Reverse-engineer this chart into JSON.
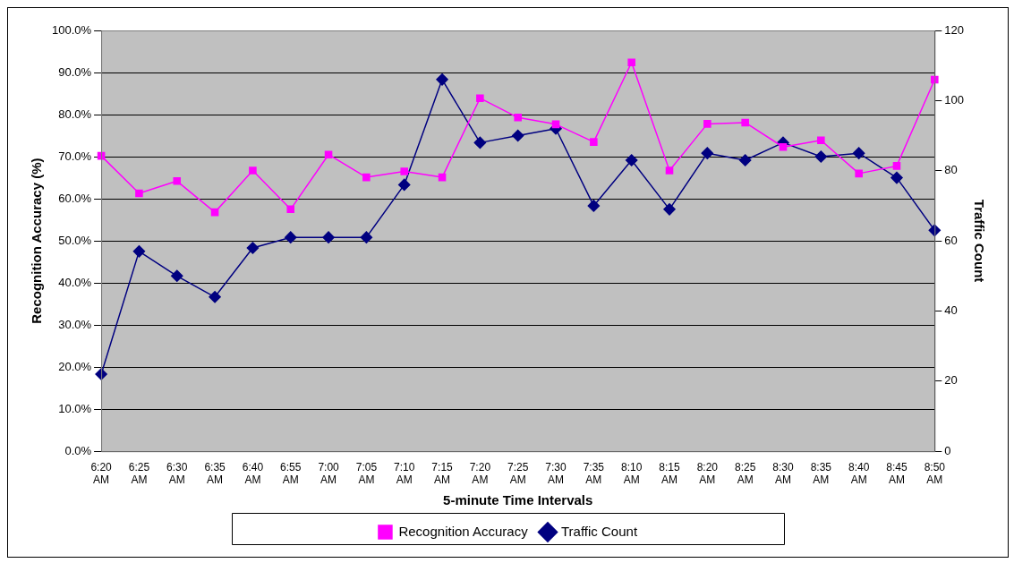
{
  "chart_data": {
    "type": "line",
    "xlabel": "5-minute Time Intervals",
    "ylabel": "Recognition Accuracy (%)",
    "y2label": "Traffic Count",
    "categories": [
      "6:20 AM",
      "6:25 AM",
      "6:30 AM",
      "6:35 AM",
      "6:40 AM",
      "6:55 AM",
      "7:00 AM",
      "7:05 AM",
      "7:10 AM",
      "7:15 AM",
      "7:20 AM",
      "7:25 AM",
      "7:30 AM",
      "7:35 AM",
      "8:10 AM",
      "8:15 AM",
      "8:20 AM",
      "8:25 AM",
      "8:30 AM",
      "8:35 AM",
      "8:40 AM",
      "8:45 AM",
      "8:50 AM"
    ],
    "series": [
      {
        "name": "Recognition Accuracy",
        "color": "#ff00ff",
        "marker": "square",
        "values": [
          70.2,
          61.3,
          64.2,
          56.8,
          66.7,
          57.5,
          70.5,
          65.1,
          66.5,
          65.1,
          83.9,
          79.3,
          77.7,
          73.5,
          92.4,
          66.7,
          77.8,
          78.1,
          72.3,
          73.9,
          66.0,
          67.8,
          88.3
        ]
      },
      {
        "name": "Traffic Count",
        "color": "#000080",
        "marker": "diamond",
        "axis": "y2",
        "values": [
          22,
          57,
          50,
          44,
          58,
          61,
          61,
          61,
          76,
          106,
          88,
          90,
          92,
          70,
          83,
          69,
          85,
          83,
          88,
          84,
          85,
          78,
          63
        ]
      }
    ],
    "ylim": [
      0,
      100
    ],
    "yticks": [
      {
        "value": 0,
        "label": "0.0%"
      },
      {
        "value": 10,
        "label": "10.0%"
      },
      {
        "value": 20,
        "label": "20.0%"
      },
      {
        "value": 30,
        "label": "30.0%"
      },
      {
        "value": 40,
        "label": "40.0%"
      },
      {
        "value": 50,
        "label": "50.0%"
      },
      {
        "value": 60,
        "label": "60.0%"
      },
      {
        "value": 70,
        "label": "70.0%"
      },
      {
        "value": 80,
        "label": "80.0%"
      },
      {
        "value": 90,
        "label": "90.0%"
      },
      {
        "value": 100,
        "label": "100.0%"
      }
    ],
    "y2lim": [
      0,
      120
    ],
    "y2ticks": [
      0,
      20,
      40,
      60,
      80,
      100,
      120
    ],
    "grid": "y",
    "legend": "bottom"
  }
}
